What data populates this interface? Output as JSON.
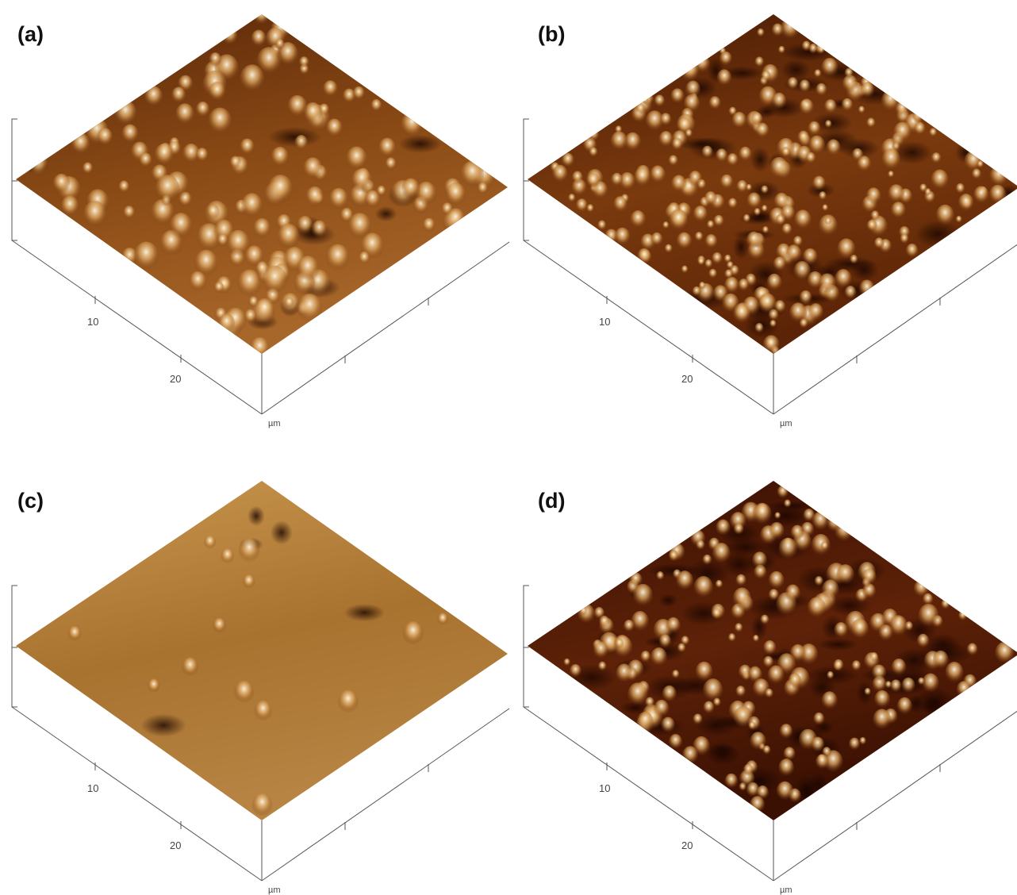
{
  "panels": [
    {
      "label": "(a)",
      "ticks": [
        10,
        20
      ],
      "unit": "µm"
    },
    {
      "label": "(b)",
      "ticks": [
        10,
        20
      ],
      "unit": "µm"
    },
    {
      "label": "(c)",
      "ticks": [
        10,
        20
      ],
      "unit": "µm"
    },
    {
      "label": "(d)",
      "ticks": [
        10,
        20
      ],
      "unit": "µm"
    }
  ]
}
